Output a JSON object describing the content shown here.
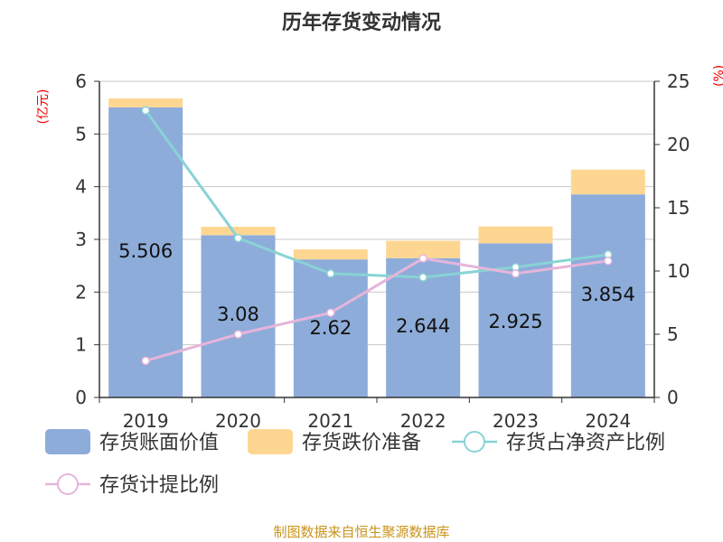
{
  "chart_data": {
    "type": "bar",
    "title": "历年存货变动情况",
    "ylabel_left": "(亿元)",
    "ylabel_right": "(%)",
    "categories": [
      "2019",
      "2020",
      "2021",
      "2022",
      "2023",
      "2024"
    ],
    "ylim_left": [
      0,
      6
    ],
    "yticks_left": [
      0,
      1,
      2,
      3,
      4,
      5,
      6
    ],
    "ylim_right": [
      0,
      25
    ],
    "yticks_right": [
      0,
      5,
      10,
      15,
      20,
      25
    ],
    "series": [
      {
        "name": "存货账面价值",
        "type": "bar",
        "stack": true,
        "color": "#8eacd9",
        "values": [
          5.506,
          3.08,
          2.62,
          2.644,
          2.925,
          3.854
        ],
        "labels": [
          "5.506",
          "3.08",
          "2.62",
          "2.644",
          "2.925",
          "3.854"
        ]
      },
      {
        "name": "存货跌价准备",
        "type": "bar",
        "stack": true,
        "color": "#fdd792",
        "values": [
          0.17,
          0.16,
          0.19,
          0.33,
          0.32,
          0.47
        ]
      },
      {
        "name": "存货占净资产比例",
        "type": "line",
        "axis": "right",
        "color": "#88d3d5",
        "values": [
          22.7,
          12.6,
          9.8,
          9.5,
          10.3,
          11.3
        ]
      },
      {
        "name": "存货计提比例",
        "type": "line",
        "axis": "right",
        "color": "#e6b5db",
        "values": [
          2.9,
          5.0,
          6.7,
          11.0,
          9.8,
          10.8
        ]
      }
    ],
    "grid": true,
    "legend": "bottom",
    "source": "制图数据来自恒生聚源数据库"
  }
}
